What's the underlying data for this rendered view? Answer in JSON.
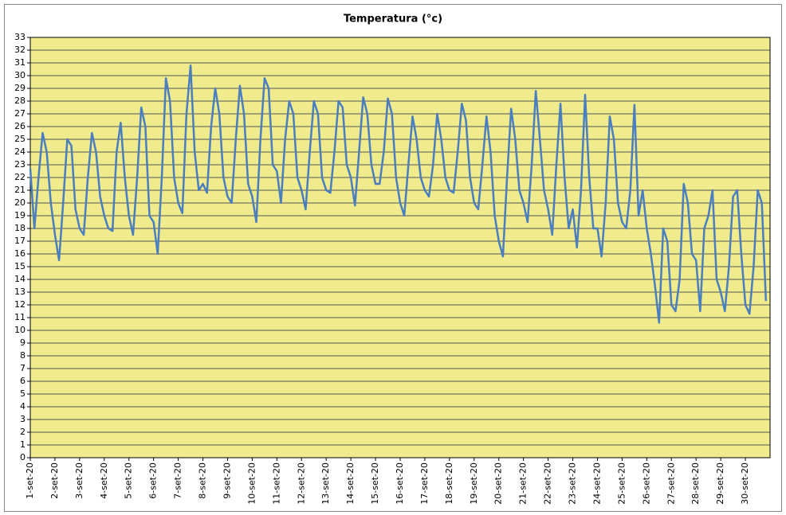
{
  "chart_data": {
    "type": "line",
    "title": "Temperatura (°c)",
    "categories": [
      "1-set-20",
      null,
      null,
      null,
      null,
      null,
      "2-set-20",
      null,
      null,
      null,
      null,
      null,
      "3-set-20",
      null,
      null,
      null,
      null,
      null,
      "4-set-20",
      null,
      null,
      null,
      null,
      null,
      "5-set-20",
      null,
      null,
      null,
      null,
      null,
      "6-set-20",
      null,
      null,
      null,
      null,
      null,
      "7-set-20",
      null,
      null,
      null,
      null,
      null,
      "8-set-20",
      null,
      null,
      null,
      null,
      null,
      "9-set-20",
      null,
      null,
      null,
      null,
      null,
      "10-set-20",
      null,
      null,
      null,
      null,
      null,
      "11-set-20",
      null,
      null,
      null,
      null,
      null,
      "12-set-20",
      null,
      null,
      null,
      null,
      null,
      "13-set-20",
      null,
      null,
      null,
      null,
      null,
      "14-set-20",
      null,
      null,
      null,
      null,
      null,
      "15-set-20",
      null,
      null,
      null,
      null,
      null,
      "16-set-20",
      null,
      null,
      null,
      null,
      null,
      "17-set-20",
      null,
      null,
      null,
      null,
      null,
      "18-set-20",
      null,
      null,
      null,
      null,
      null,
      "19-set-20",
      null,
      null,
      null,
      null,
      null,
      "20-set-20",
      null,
      null,
      null,
      null,
      null,
      "21-set-20",
      null,
      null,
      null,
      null,
      null,
      "22-set-20",
      null,
      null,
      null,
      null,
      null,
      "23-set-20",
      null,
      null,
      null,
      null,
      null,
      "24-set-20",
      null,
      null,
      null,
      null,
      null,
      "25-set-20",
      null,
      null,
      null,
      null,
      null,
      "26-set-20",
      null,
      null,
      null,
      null,
      null,
      "27-set-20",
      null,
      null,
      null,
      null,
      null,
      "28-set-20",
      null,
      null,
      null,
      null,
      null,
      "29-set-20",
      null,
      null,
      null,
      null,
      null,
      "30-set-20",
      null,
      null,
      null,
      null,
      null
    ],
    "values": [
      22.7,
      18,
      22,
      25.5,
      24,
      20,
      17.5,
      15.5,
      20,
      25,
      24.5,
      19.5,
      18,
      17.5,
      22,
      25.5,
      24,
      20.5,
      19,
      18,
      17.8,
      24,
      26.3,
      22,
      19,
      17.5,
      22,
      27.5,
      26,
      19,
      18.5,
      16,
      22,
      29.8,
      28,
      22,
      20,
      19.2,
      27,
      30.8,
      24,
      21,
      21.5,
      20.8,
      26,
      29,
      27,
      22,
      20.5,
      20,
      25,
      29.2,
      27,
      21.5,
      20.5,
      18.5,
      25,
      29.8,
      29,
      23,
      22.5,
      20,
      25,
      28,
      27,
      22,
      21,
      19.5,
      24,
      28,
      27,
      22,
      21,
      20.8,
      24,
      28,
      27.5,
      23,
      22,
      19.8,
      24,
      28.3,
      27,
      23,
      21.5,
      21.5,
      24,
      28.2,
      27,
      22,
      20,
      19,
      23,
      26.8,
      25,
      22,
      21,
      20.5,
      23,
      27,
      25,
      22,
      21,
      20.8,
      24,
      27.8,
      26.5,
      22,
      20,
      19.5,
      23,
      26.8,
      24,
      19,
      17,
      15.8,
      22,
      27.4,
      25,
      21,
      20,
      18.5,
      23,
      28.8,
      25,
      21,
      19.5,
      17.5,
      23,
      27.8,
      22,
      18,
      19.5,
      16.5,
      21,
      28.5,
      22,
      18,
      18,
      15.8,
      20,
      26.8,
      25,
      20,
      18.5,
      18,
      21,
      27.7,
      19,
      21,
      18,
      16,
      13.5,
      10.6,
      18,
      17,
      12,
      11.5,
      14,
      21.5,
      20,
      16,
      15.5,
      11.5,
      18,
      19,
      21,
      14,
      13,
      11.5,
      15,
      20.5,
      21,
      16,
      12,
      11.3,
      15,
      21,
      20,
      12.3
    ],
    "color": "#4a7ebf",
    "ylim": [
      0,
      33
    ],
    "yticks": [
      0,
      1,
      2,
      3,
      4,
      5,
      6,
      7,
      8,
      9,
      10,
      11,
      12,
      13,
      14,
      15,
      16,
      17,
      18,
      19,
      20,
      21,
      22,
      23,
      24,
      25,
      26,
      27,
      28,
      29,
      30,
      31,
      32,
      33
    ],
    "grid": true
  }
}
